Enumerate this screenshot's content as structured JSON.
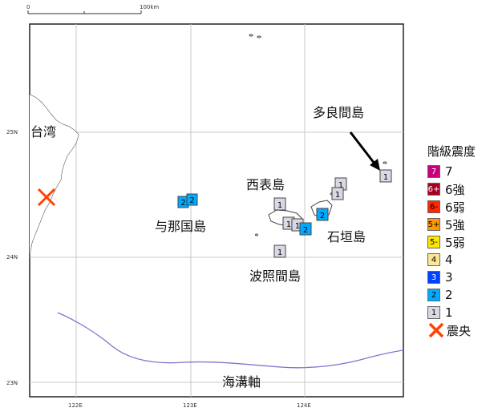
{
  "scale": {
    "zero": "0",
    "end": "100km"
  },
  "ticks": {
    "lat": [
      "25N",
      "24N",
      "23N"
    ],
    "lon": [
      "122E",
      "123E",
      "124E"
    ]
  },
  "places": {
    "taiwan": "台湾",
    "tarama": "多良間島",
    "iriomote": "西表島",
    "yonaguni": "与那国島",
    "ishigaki": "石垣島",
    "hateruma": "波照間島",
    "trench": "海溝軸"
  },
  "stations": [
    {
      "island": "yonaguni",
      "value": "2"
    },
    {
      "island": "yonaguni",
      "value": "2"
    },
    {
      "island": "iriomote",
      "value": "1"
    },
    {
      "island": "iriomote",
      "value": "1"
    },
    {
      "island": "iriomote",
      "value": "1"
    },
    {
      "island": "iriomote",
      "value": "2"
    },
    {
      "island": "ishigaki",
      "value": "1"
    },
    {
      "island": "ishigaki",
      "value": "1"
    },
    {
      "island": "ishigaki",
      "value": "2"
    },
    {
      "island": "hateruma",
      "value": "1"
    },
    {
      "island": "tarama",
      "value": "1"
    }
  ],
  "legend": {
    "title": "階級震度",
    "items": [
      {
        "badge": "7",
        "label": "7",
        "color": "#c8007d"
      },
      {
        "badge": "6+",
        "label": "6強",
        "color": "#a50021"
      },
      {
        "badge": "6-",
        "label": "6弱",
        "color": "#ff2800"
      },
      {
        "badge": "5+",
        "label": "5強",
        "color": "#ff9900"
      },
      {
        "badge": "5-",
        "label": "5弱",
        "color": "#ffe600"
      },
      {
        "badge": "4",
        "label": "4",
        "color": "#fae696"
      },
      {
        "badge": "3",
        "label": "3",
        "color": "#0041ff"
      },
      {
        "badge": "2",
        "label": "2",
        "color": "#00aaff"
      },
      {
        "badge": "1",
        "label": "1",
        "color": "#d9d9e6"
      }
    ],
    "epicenter": {
      "label": "震央",
      "icon": "x-mark-icon",
      "color": "#ff4400"
    }
  }
}
